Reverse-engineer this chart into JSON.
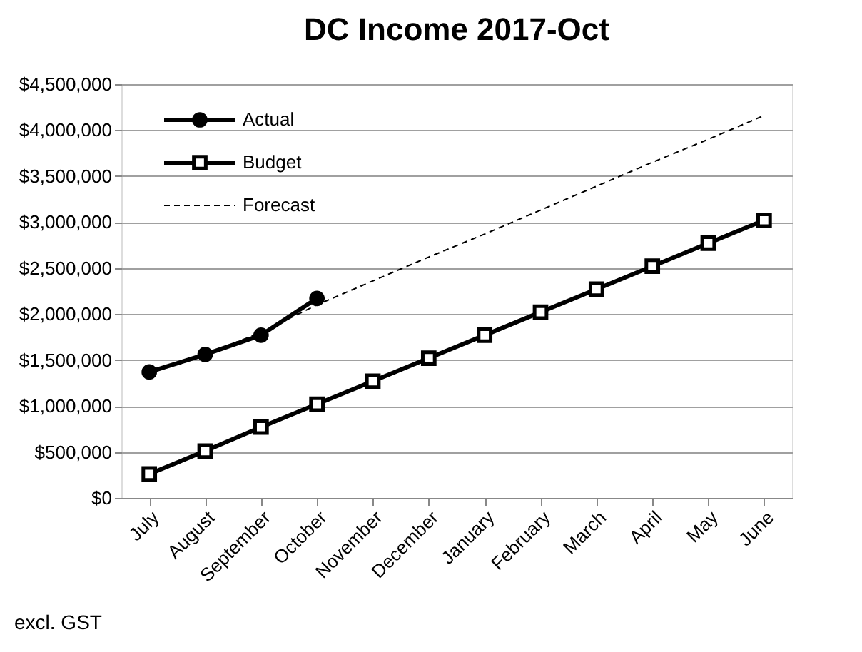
{
  "chart_data": {
    "type": "line",
    "title": "DC Income 2017-Oct",
    "categories": [
      "July",
      "August",
      "September",
      "October",
      "November",
      "December",
      "January",
      "February",
      "March",
      "April",
      "May",
      "June"
    ],
    "series": [
      {
        "name": "Actual",
        "color": "#000000",
        "marker": "circle",
        "line_style": "solid",
        "values": [
          1370000,
          1560000,
          1770000,
          2170000,
          null,
          null,
          null,
          null,
          null,
          null,
          null,
          null
        ]
      },
      {
        "name": "Budget",
        "color": "#000000",
        "marker": "square",
        "line_style": "solid",
        "values": [
          260000,
          510000,
          770000,
          1020000,
          1270000,
          1520000,
          1770000,
          2020000,
          2270000,
          2520000,
          2770000,
          3020000
        ]
      },
      {
        "name": "Forecast",
        "color": "#000000",
        "marker": "none",
        "line_style": "dashed",
        "values": [
          null,
          1560000,
          1800000,
          2100000,
          2360000,
          2620000,
          2870000,
          3130000,
          3390000,
          3650000,
          3900000,
          4160000
        ]
      }
    ],
    "ylim": [
      0,
      4500000
    ],
    "yticks": [
      {
        "value": 0,
        "label": "$0"
      },
      {
        "value": 500000,
        "label": "$500,000"
      },
      {
        "value": 1000000,
        "label": "$1,000,000"
      },
      {
        "value": 1500000,
        "label": "$1,500,000"
      },
      {
        "value": 2000000,
        "label": "$2,000,000"
      },
      {
        "value": 2500000,
        "label": "$2,500,000"
      },
      {
        "value": 3000000,
        "label": "$3,000,000"
      },
      {
        "value": 3500000,
        "label": "$3,500,000"
      },
      {
        "value": 4000000,
        "label": "$4,000,000"
      },
      {
        "value": 4500000,
        "label": "$4,500,000"
      }
    ],
    "grid": "y",
    "legend": "top left",
    "annotations": [
      "excl. GST"
    ]
  }
}
